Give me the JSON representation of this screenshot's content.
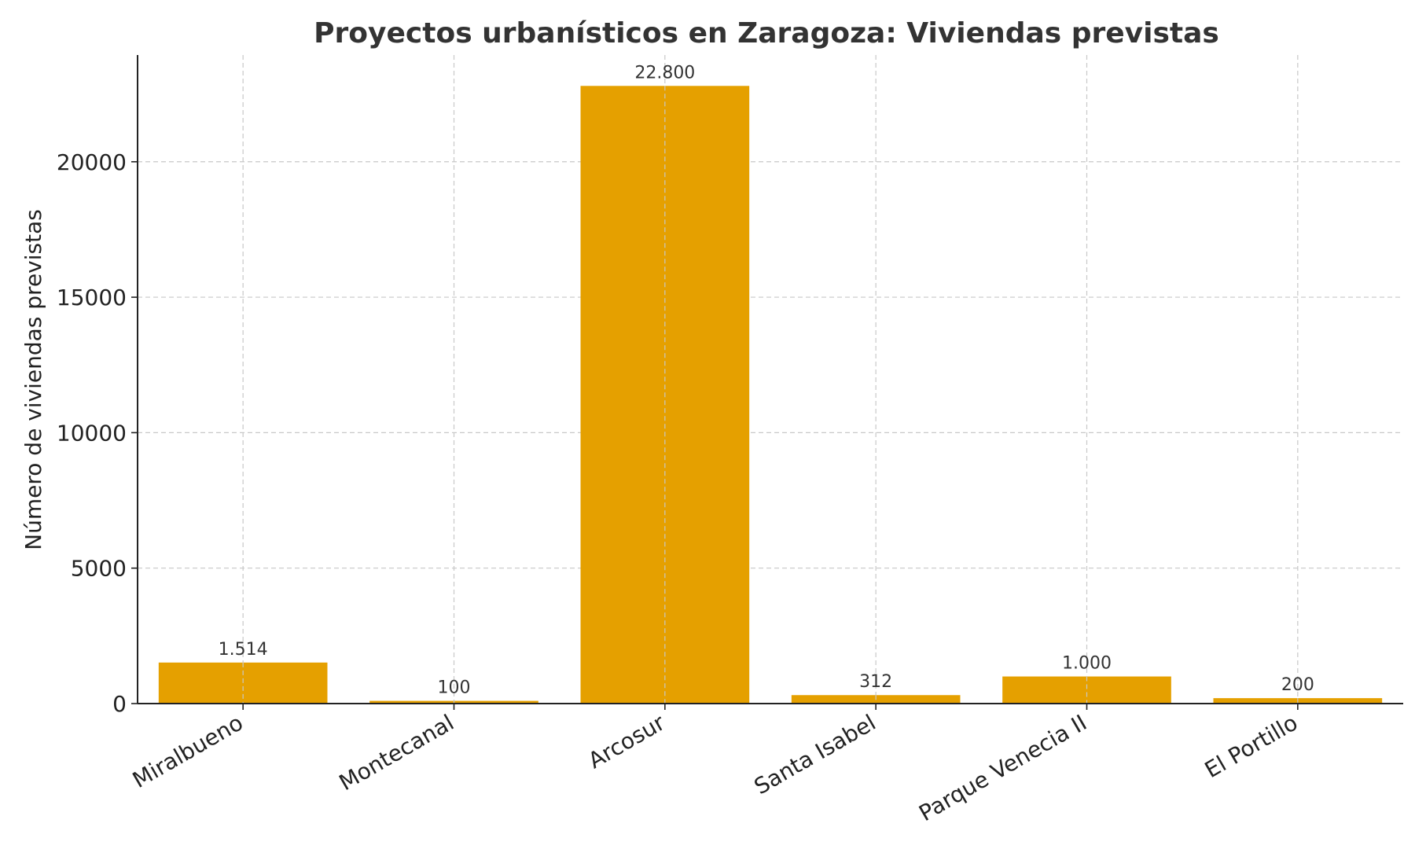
{
  "chart_data": {
    "type": "bar",
    "title": "Proyectos urbanísticos en Zaragoza: Viviendas previstas",
    "xlabel": "",
    "ylabel": "Número de viviendas previstas",
    "categories": [
      "Miralbueno",
      "Montecanal",
      "Arcosur",
      "Santa Isabel",
      "Parque Venecia II",
      "El Portillo"
    ],
    "values": [
      1514,
      100,
      22800,
      312,
      1000,
      200
    ],
    "value_labels": [
      "1.514",
      "100",
      "22.800",
      "312",
      "1.000",
      "200"
    ],
    "yticks": [
      0,
      5000,
      10000,
      15000,
      20000
    ],
    "ytick_labels": [
      "0",
      "5000",
      "10000",
      "15000",
      "20000"
    ],
    "ylim": [
      0,
      23940
    ],
    "grid": true,
    "bar_color": "#E5A000"
  }
}
